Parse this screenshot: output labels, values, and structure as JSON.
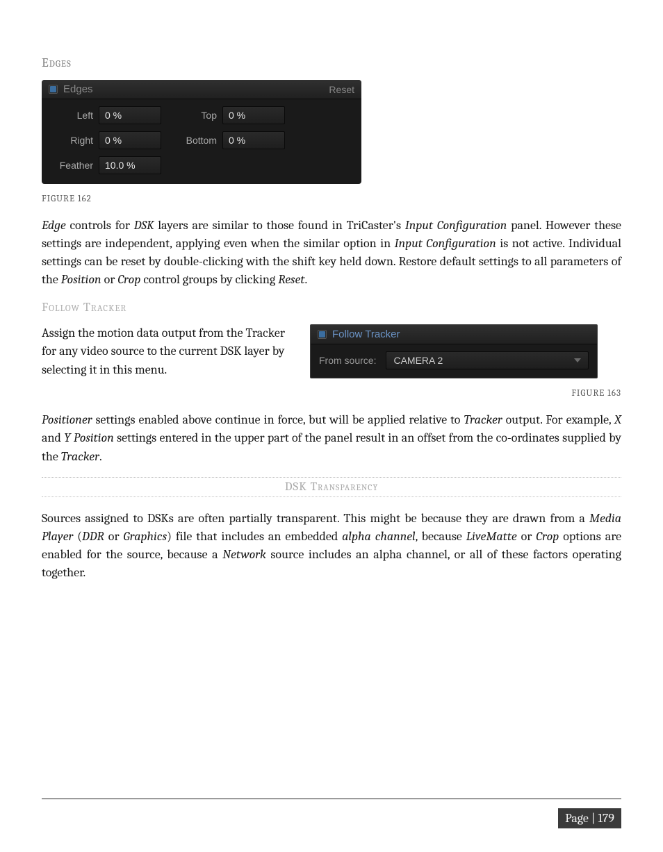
{
  "headings": {
    "edges": "Edges",
    "follow_tracker": "Follow Tracker",
    "dsk_transparency": "DSK Transparency"
  },
  "edges_panel": {
    "checkbox_on": true,
    "title": "Edges",
    "reset": "Reset",
    "fields": {
      "left_label": "Left",
      "left_value": "0 %",
      "right_label": "Right",
      "right_value": "0 %",
      "top_label": "Top",
      "top_value": "0 %",
      "bottom_label": "Bottom",
      "bottom_value": "0 %",
      "feather_label": "Feather",
      "feather_value": "10.0 %"
    },
    "colors": {
      "bg": "#1a1a1a",
      "header_grad_top": "#303030",
      "header_grad_bot": "#202020",
      "text_muted": "#888888",
      "text_val": "#e8e8e8",
      "accent": "#3b6ea0"
    }
  },
  "captions": {
    "fig162": "FIGURE 162",
    "fig163": "FIGURE 163"
  },
  "paragraphs": {
    "p1a": "Edge",
    "p1b": " controls for ",
    "p1c": "DSK",
    "p1d": " layers are similar to those found in TriCaster's ",
    "p1e": "Input Configuration",
    "p1f": " panel.  However these settings are independent, applying even when the similar option in ",
    "p1g": "Input Configuration",
    "p1h": " is not active. Individual settings can be reset by double-clicking with the shift key held down. Restore default settings to all parameters of the ",
    "p1i": "Position",
    "p1j": " or ",
    "p1k": "Crop",
    "p1l": " control groups by clicking ",
    "p1m": "Reset",
    "p1n": ".",
    "ft1": "Assign the motion data output from the ",
    "ft2": "Tracker",
    "ft3": " for any video source to the current DSK layer by selecting it in this menu.",
    "p2a": "Positioner",
    "p2b": " settings enabled above continue in force, but will be applied relative to ",
    "p2c": "Tracker",
    "p2d": " output.  For example, ",
    "p2e": "X",
    "p2f": " and ",
    "p2g": "Y Position",
    "p2h": " settings entered in the upper part of the panel result in an offset from the co-ordinates supplied by the ",
    "p2i": "Tracker",
    "p2j": ".",
    "p3a": "Sources assigned to DSKs are often partially transparent.   This might be because they are drawn from a ",
    "p3b": "Media Player",
    "p3c": " (",
    "p3d": "DDR",
    "p3e": " or ",
    "p3f": "Graphics",
    "p3g": ") file that includes an embedded ",
    "p3h": "alpha channel",
    "p3i": ", because ",
    "p3j": "LiveMatte",
    "p3k": " or ",
    "p3l": "Crop",
    "p3m": " options are enabled for the source, because a ",
    "p3n": "Network",
    "p3o": " source includes an alpha channel, or all of these factors operating together."
  },
  "follow_panel": {
    "checkbox_on": true,
    "title": "Follow Tracker",
    "source_label": "From source:",
    "source_value": "CAMERA 2",
    "colors": {
      "title_color": "#6b94c7"
    }
  },
  "footer": {
    "page_label": "Page | 179"
  }
}
